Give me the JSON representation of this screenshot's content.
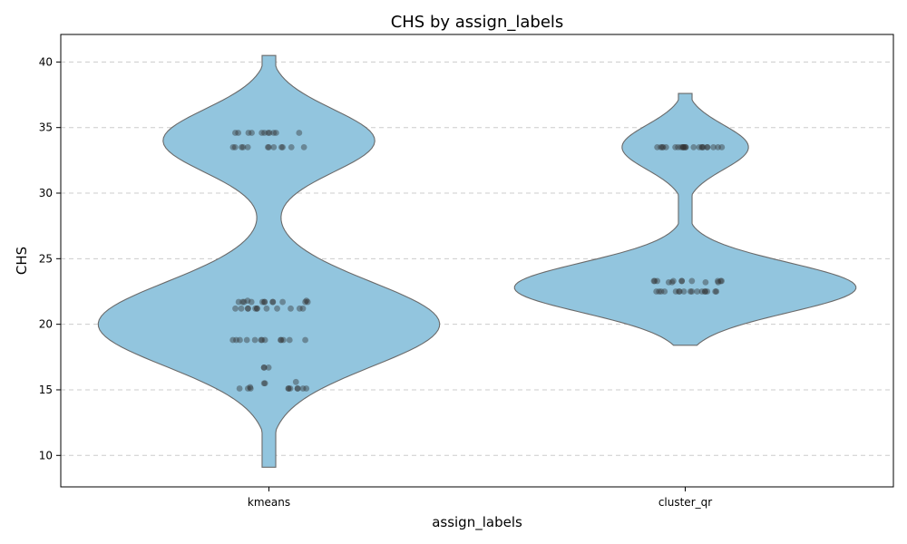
{
  "chart_data": {
    "type": "violin",
    "title": "CHS by assign_labels",
    "xlabel": "assign_labels",
    "ylabel": "CHS",
    "ylim": [
      7.6,
      42.1
    ],
    "yticks": [
      10,
      15,
      20,
      25,
      30,
      35,
      40
    ],
    "grid": "y-dashed",
    "colors": {
      "violin_fill": "#92c5de",
      "violin_edge": "#6a6a6a",
      "points": "#333333"
    },
    "categories": [
      "kmeans",
      "cluster_qr"
    ],
    "groups": [
      {
        "category": "kmeans",
        "range": [
          9.1,
          40.5
        ],
        "modes": [
          {
            "center": 20.0,
            "sigma": 3.2,
            "weight": 1.0
          },
          {
            "center": 34.0,
            "sigma": 2.4,
            "weight": 0.62
          }
        ],
        "points": [
          34.6,
          34.6,
          34.6,
          34.6,
          34.6,
          34.6,
          34.6,
          34.6,
          34.6,
          34.6,
          34.6,
          33.5,
          33.5,
          33.5,
          33.5,
          33.5,
          33.5,
          33.5,
          33.5,
          33.5,
          33.5,
          33.5,
          33.5,
          21.8,
          21.7,
          21.7,
          21.7,
          21.7,
          21.7,
          21.7,
          21.7,
          21.7,
          21.7,
          21.7,
          21.7,
          21.8,
          21.7,
          21.2,
          21.2,
          21.2,
          21.2,
          21.2,
          21.2,
          21.2,
          21.2,
          21.2,
          21.2,
          21.2,
          21.2,
          18.8,
          18.8,
          18.8,
          18.8,
          18.8,
          18.8,
          18.8,
          18.8,
          18.8,
          18.8,
          18.8,
          18.8,
          18.8,
          16.7,
          16.7,
          16.7,
          15.6,
          15.5,
          15.5,
          15.2,
          15.1,
          15.1,
          15.1,
          15.1,
          15.1,
          15.1,
          15.1,
          15.1,
          15.1,
          15.1
        ]
      },
      {
        "category": "cluster_qr",
        "range": [
          18.4,
          37.6
        ],
        "modes": [
          {
            "center": 22.8,
            "sigma": 1.9,
            "weight": 1.0
          },
          {
            "center": 33.5,
            "sigma": 1.7,
            "weight": 0.37
          }
        ],
        "points": [
          33.5,
          33.5,
          33.5,
          33.5,
          33.5,
          33.5,
          33.5,
          33.5,
          33.5,
          33.5,
          33.5,
          33.5,
          33.5,
          33.5,
          33.5,
          33.5,
          33.5,
          33.5,
          33.5,
          33.5,
          33.5,
          33.5,
          33.5,
          33.5,
          23.3,
          23.3,
          23.3,
          23.2,
          23.3,
          23.2,
          23.3,
          23.3,
          23.3,
          23.2,
          23.3,
          23.2,
          23.3,
          23.3,
          22.5,
          22.5,
          22.5,
          22.5,
          22.5,
          22.5,
          22.5,
          22.5,
          22.5,
          22.5,
          22.5,
          22.5,
          22.5,
          22.5,
          22.5,
          22.5,
          22.5
        ]
      }
    ]
  }
}
